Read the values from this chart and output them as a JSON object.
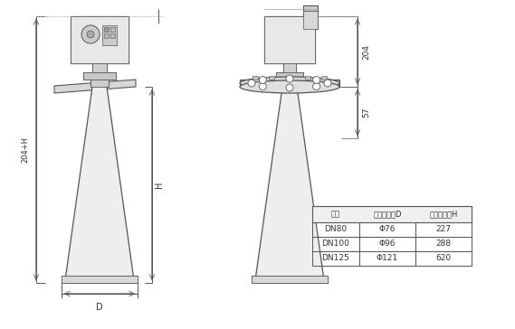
{
  "title": "",
  "bg_color": "#ffffff",
  "line_color": "#555555",
  "table_headers": [
    "法兰",
    "喇叭口直径D",
    "喇叭口高度H"
  ],
  "table_rows": [
    [
      "DN80",
      "Φ76",
      "227"
    ],
    [
      "DN100",
      "Φ96",
      "288"
    ],
    [
      "DN125",
      "Φ121",
      "620"
    ]
  ],
  "dim_204": "204",
  "dim_57": "57",
  "dim_H": "H",
  "dim_204H": "204+H",
  "dim_D": "D"
}
